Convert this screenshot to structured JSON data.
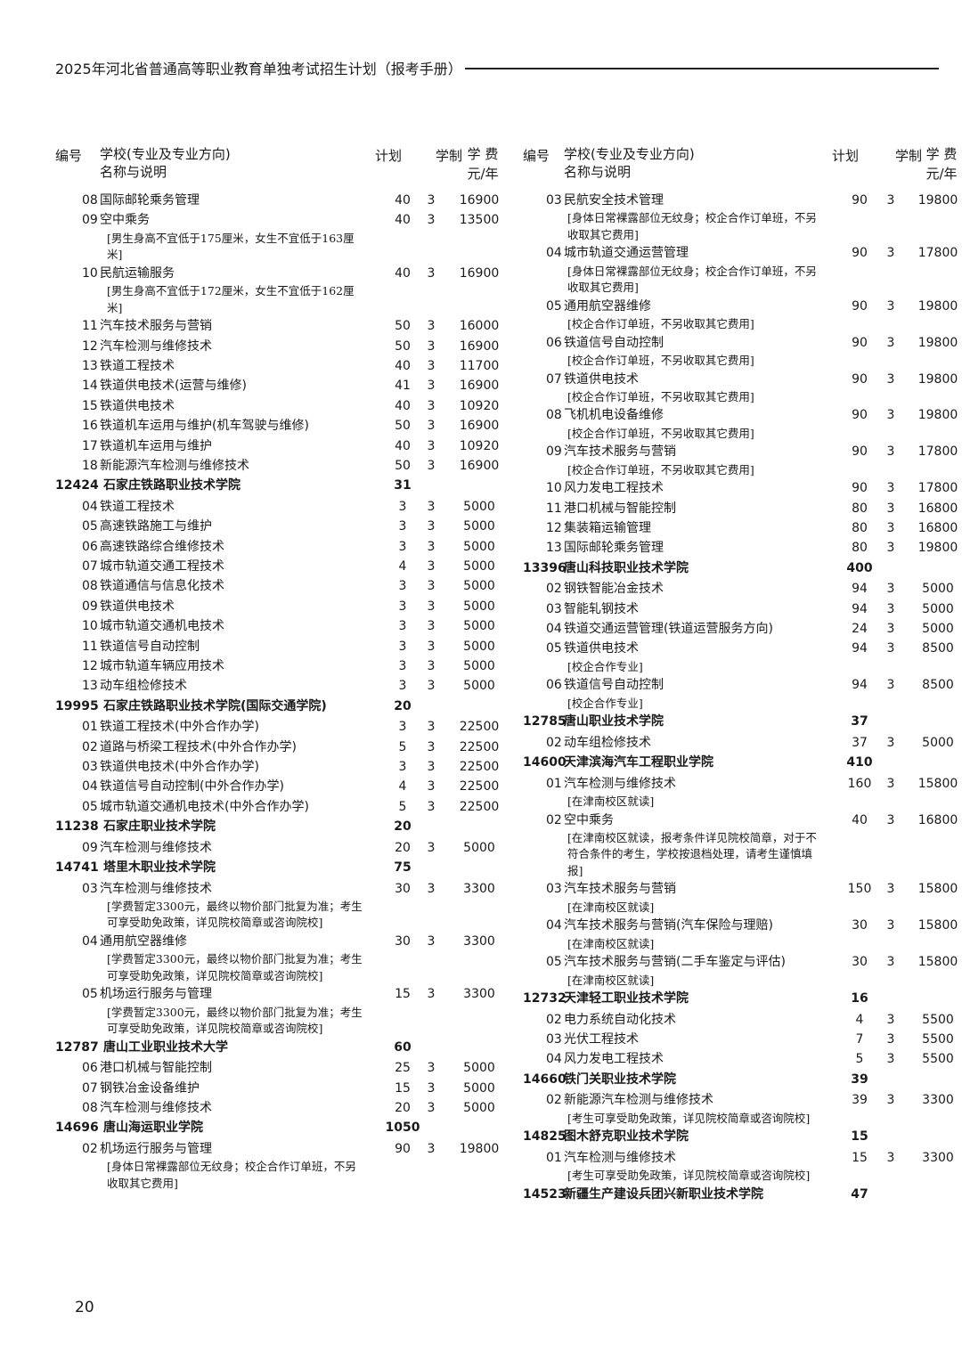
{
  "header": {
    "title": "2025年河北省普通高等职业教育单独考试招生计划（报考手册）"
  },
  "page_number": "20",
  "columns": [
    {
      "headers": {
        "code": "编号",
        "school": "学校(专业及专业方向)",
        "name": "名称与说明",
        "plan": "计划",
        "years": "学制",
        "fee": "学 费",
        "fee_unit": "元/年"
      },
      "rows": [
        {
          "code": "08",
          "name": "国际邮轮乘务管理",
          "plan": 40,
          "years": 3,
          "fee": 16900
        },
        {
          "code": "09",
          "name": "空中乘务",
          "note": "[男生身高不宜低于175厘米，女生不宜低于163厘米]",
          "plan": 40,
          "years": 3,
          "fee": 13500
        },
        {
          "code": "10",
          "name": "民航运输服务",
          "note": "[男生身高不宜低于172厘米，女生不宜低于162厘米]",
          "plan": 40,
          "years": 3,
          "fee": 16900
        },
        {
          "code": "11",
          "name": "汽车技术服务与营销",
          "plan": 50,
          "years": 3,
          "fee": 16000
        },
        {
          "code": "12",
          "name": "汽车检测与维修技术",
          "plan": 50,
          "years": 3,
          "fee": 16900
        },
        {
          "code": "13",
          "name": "铁道工程技术",
          "plan": 40,
          "years": 3,
          "fee": 11700
        },
        {
          "code": "14",
          "name": "铁道供电技术(运营与维修)",
          "plan": 41,
          "years": 3,
          "fee": 16900
        },
        {
          "code": "15",
          "name": "铁道供电技术",
          "plan": 40,
          "years": 3,
          "fee": 10920
        },
        {
          "code": "16",
          "name": "铁道机车运用与维护(机车驾驶与维修)",
          "plan": 50,
          "years": 3,
          "fee": 16900
        },
        {
          "code": "17",
          "name": "铁道机车运用与维护",
          "plan": 40,
          "years": 3,
          "fee": 10920
        },
        {
          "code": "18",
          "name": "新能源汽车检测与维修技术",
          "plan": 50,
          "years": 3,
          "fee": 16900
        },
        {
          "code": "12424",
          "name": "石家庄铁路职业技术学院",
          "plan": 31
        },
        {
          "code": "04",
          "name": "铁道工程技术",
          "plan": 3,
          "years": 3,
          "fee": 5000
        },
        {
          "code": "05",
          "name": "高速铁路施工与维护",
          "plan": 3,
          "years": 3,
          "fee": 5000
        },
        {
          "code": "06",
          "name": "高速铁路综合维修技术",
          "plan": 3,
          "years": 3,
          "fee": 5000
        },
        {
          "code": "07",
          "name": "城市轨道交通工程技术",
          "plan": 4,
          "years": 3,
          "fee": 5000
        },
        {
          "code": "08",
          "name": "铁道通信与信息化技术",
          "plan": 3,
          "years": 3,
          "fee": 5000
        },
        {
          "code": "09",
          "name": "铁道供电技术",
          "plan": 3,
          "years": 3,
          "fee": 5000
        },
        {
          "code": "10",
          "name": "城市轨道交通机电技术",
          "plan": 3,
          "years": 3,
          "fee": 5000
        },
        {
          "code": "11",
          "name": "铁道信号自动控制",
          "plan": 3,
          "years": 3,
          "fee": 5000
        },
        {
          "code": "12",
          "name": "城市轨道车辆应用技术",
          "plan": 3,
          "years": 3,
          "fee": 5000
        },
        {
          "code": "13",
          "name": "动车组检修技术",
          "plan": 3,
          "years": 3,
          "fee": 5000
        },
        {
          "code": "19995",
          "name": "石家庄铁路职业技术学院(国际交通学院)",
          "plan": 20
        },
        {
          "code": "01",
          "name": "铁道工程技术(中外合作办学)",
          "plan": 3,
          "years": 3,
          "fee": 22500
        },
        {
          "code": "02",
          "name": "道路与桥梁工程技术(中外合作办学)",
          "plan": 5,
          "years": 3,
          "fee": 22500
        },
        {
          "code": "03",
          "name": "铁道供电技术(中外合作办学)",
          "plan": 3,
          "years": 3,
          "fee": 22500
        },
        {
          "code": "04",
          "name": "铁道信号自动控制(中外合作办学)",
          "plan": 4,
          "years": 3,
          "fee": 22500
        },
        {
          "code": "05",
          "name": "城市轨道交通机电技术(中外合作办学)",
          "plan": 5,
          "years": 3,
          "fee": 22500
        },
        {
          "code": "11238",
          "name": "石家庄职业技术学院",
          "plan": 20
        },
        {
          "code": "09",
          "name": "汽车检测与维修技术",
          "plan": 20,
          "years": 3,
          "fee": 5000
        },
        {
          "code": "14741",
          "name": "塔里木职业技术学院",
          "plan": 75
        },
        {
          "code": "03",
          "name": "汽车检测与维修技术",
          "note": "[学费暂定3300元，最终以物价部门批复为准；考生可享受助免政策，详见院校简章或咨询院校]",
          "plan": 30,
          "years": 3,
          "fee": 3300
        },
        {
          "code": "04",
          "name": "通用航空器维修",
          "note": "[学费暂定3300元，最终以物价部门批复为准；考生可享受助免政策，详见院校简章或咨询院校]",
          "plan": 30,
          "years": 3,
          "fee": 3300
        },
        {
          "code": "05",
          "name": "机场运行服务与管理",
          "note": "[学费暂定3300元，最终以物价部门批复为准；考生可享受助免政策，详见院校简章或咨询院校]",
          "plan": 15,
          "years": 3,
          "fee": 3300
        },
        {
          "code": "12787",
          "name": "唐山工业职业技术大学",
          "plan": 60
        },
        {
          "code": "06",
          "name": "港口机械与智能控制",
          "plan": 25,
          "years": 3,
          "fee": 5000
        },
        {
          "code": "07",
          "name": "钢铁冶金设备维护",
          "plan": 15,
          "years": 3,
          "fee": 5000
        },
        {
          "code": "08",
          "name": "汽车检测与维修技术",
          "plan": 20,
          "years": 3,
          "fee": 5000
        },
        {
          "code": "14696",
          "name": "唐山海运职业学院",
          "plan": 1050
        },
        {
          "code": "02",
          "name": "机场运行服务与管理",
          "note": "[身体日常裸露部位无纹身；校企合作订单班，不另收取其它费用]",
          "plan": 90,
          "years": 3,
          "fee": 19800
        }
      ]
    },
    {
      "headers": {
        "code": "编号",
        "school": "学校(专业及专业方向)",
        "name": "名称与说明",
        "plan": "计划",
        "years": "学制",
        "fee": "学 费",
        "fee_unit": "元/年"
      },
      "rows": [
        {
          "code": "03",
          "name": "民航安全技术管理",
          "note": "[身体日常裸露部位无纹身；校企合作订单班，不另收取其它费用]",
          "plan": 90,
          "years": 3,
          "fee": 19800
        },
        {
          "code": "04",
          "name": "城市轨道交通运营管理",
          "note": "[身体日常裸露部位无纹身；校企合作订单班，不另收取其它费用]",
          "plan": 90,
          "years": 3,
          "fee": 17800
        },
        {
          "code": "05",
          "name": "通用航空器维修",
          "note": "[校企合作订单班，不另收取其它费用]",
          "plan": 90,
          "years": 3,
          "fee": 19800
        },
        {
          "code": "06",
          "name": "铁道信号自动控制",
          "note": "[校企合作订单班，不另收取其它费用]",
          "plan": 90,
          "years": 3,
          "fee": 19800
        },
        {
          "code": "07",
          "name": "铁道供电技术",
          "note": "[校企合作订单班，不另收取其它费用]",
          "plan": 90,
          "years": 3,
          "fee": 19800
        },
        {
          "code": "08",
          "name": "飞机机电设备维修",
          "note": "[校企合作订单班，不另收取其它费用]",
          "plan": 90,
          "years": 3,
          "fee": 19800
        },
        {
          "code": "09",
          "name": "汽车技术服务与营销",
          "note": "[校企合作订单班，不另收取其它费用]",
          "plan": 90,
          "years": 3,
          "fee": 17800
        },
        {
          "code": "10",
          "name": "风力发电工程技术",
          "plan": 90,
          "years": 3,
          "fee": 17800
        },
        {
          "code": "11",
          "name": "港口机械与智能控制",
          "plan": 80,
          "years": 3,
          "fee": 16800
        },
        {
          "code": "12",
          "name": "集装箱运输管理",
          "plan": 80,
          "years": 3,
          "fee": 16800
        },
        {
          "code": "13",
          "name": "国际邮轮乘务管理",
          "plan": 80,
          "years": 3,
          "fee": 19800
        },
        {
          "code": "13396",
          "name": "唐山科技职业技术学院",
          "plan": 400
        },
        {
          "code": "02",
          "name": "钢铁智能冶金技术",
          "plan": 94,
          "years": 3,
          "fee": 5000
        },
        {
          "code": "03",
          "name": "智能轧钢技术",
          "plan": 94,
          "years": 3,
          "fee": 5000
        },
        {
          "code": "04",
          "name": "铁道交通运营管理(铁道运营服务方向)",
          "plan": 24,
          "years": 3,
          "fee": 5000
        },
        {
          "code": "05",
          "name": "铁道供电技术",
          "note": "[校企合作专业]",
          "plan": 94,
          "years": 3,
          "fee": 8500
        },
        {
          "code": "06",
          "name": "铁道信号自动控制",
          "note": "[校企合作专业]",
          "plan": 94,
          "years": 3,
          "fee": 8500
        },
        {
          "code": "12785",
          "name": "唐山职业技术学院",
          "plan": 37
        },
        {
          "code": "02",
          "name": "动车组检修技术",
          "plan": 37,
          "years": 3,
          "fee": 5000
        },
        {
          "code": "14600",
          "name": "天津滨海汽车工程职业学院",
          "plan": 410
        },
        {
          "code": "01",
          "name": "汽车检测与维修技术",
          "note": "[在津南校区就读]",
          "plan": 160,
          "years": 3,
          "fee": 15800
        },
        {
          "code": "02",
          "name": "空中乘务",
          "note": "[在津南校区就读，报考条件详见院校简章，对于不符合条件的考生，学校按退档处理，请考生谨慎填报]",
          "plan": 40,
          "years": 3,
          "fee": 16800
        },
        {
          "code": "03",
          "name": "汽车技术服务与营销",
          "note": "[在津南校区就读]",
          "plan": 150,
          "years": 3,
          "fee": 15800
        },
        {
          "code": "04",
          "name": "汽车技术服务与营销(汽车保险与理赔)",
          "note": "[在津南校区就读]",
          "plan": 30,
          "years": 3,
          "fee": 15800
        },
        {
          "code": "05",
          "name": "汽车技术服务与营销(二手车鉴定与评估)",
          "note": "[在津南校区就读]",
          "plan": 30,
          "years": 3,
          "fee": 15800
        },
        {
          "code": "12732",
          "name": "天津轻工职业技术学院",
          "plan": 16
        },
        {
          "code": "02",
          "name": "电力系统自动化技术",
          "plan": 4,
          "years": 3,
          "fee": 5500
        },
        {
          "code": "03",
          "name": "光伏工程技术",
          "plan": 7,
          "years": 3,
          "fee": 5500
        },
        {
          "code": "04",
          "name": "风力发电工程技术",
          "plan": 5,
          "years": 3,
          "fee": 5500
        },
        {
          "code": "14660",
          "name": "铁门关职业技术学院",
          "plan": 39
        },
        {
          "code": "02",
          "name": "新能源汽车检测与维修技术",
          "note": "[考生可享受助免政策，详见院校简章或咨询院校]",
          "plan": 39,
          "years": 3,
          "fee": 3300
        },
        {
          "code": "14825",
          "name": "图木舒克职业技术学院",
          "plan": 15
        },
        {
          "code": "01",
          "name": "汽车检测与维修技术",
          "note": "[考生可享受助免政策，详见院校简章或咨询院校]",
          "plan": 15,
          "years": 3,
          "fee": 3300
        },
        {
          "code": "14523",
          "name": "新疆生产建设兵团兴新职业技术学院",
          "plan": 47
        }
      ]
    }
  ]
}
